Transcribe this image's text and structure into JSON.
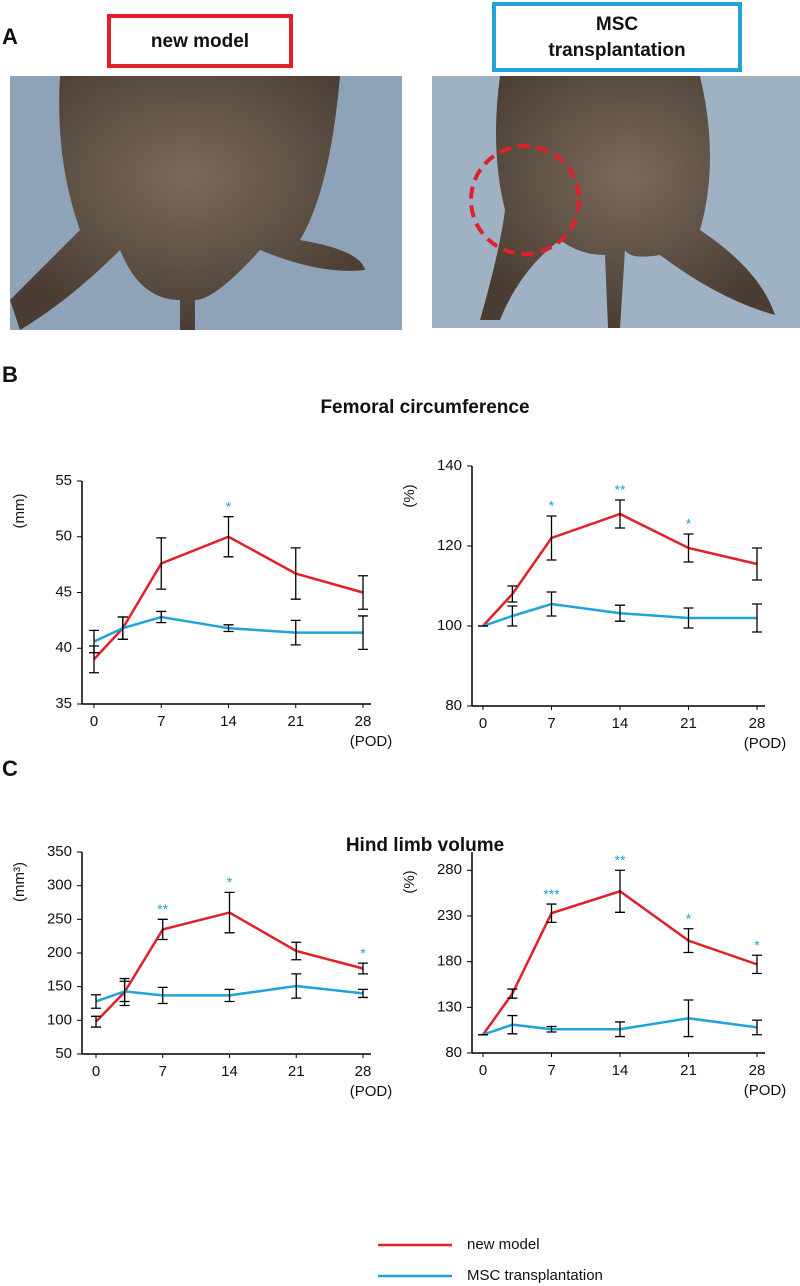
{
  "panel_labels": [
    "A",
    "B",
    "C"
  ],
  "photo_labels": {
    "left": "new model",
    "right": [
      "MSC",
      "transplantation"
    ]
  },
  "chart_data": [
    {
      "type": "line",
      "title": "Femoral circumference",
      "ylabel": "(mm)",
      "xlabel": "(POD)",
      "x": [
        0,
        3,
        7,
        14,
        21,
        28
      ],
      "xlim": [
        0,
        28
      ],
      "xticks": [
        0,
        7,
        14,
        21,
        28
      ],
      "ylim": [
        35,
        55
      ],
      "yticks": [
        35,
        40,
        45,
        50,
        55
      ],
      "series": [
        {
          "name": "new model",
          "color": "#e0202a",
          "values": [
            39.0,
            41.8,
            47.6,
            50.0,
            46.7,
            45.0
          ],
          "errors": [
            1.2,
            1.0,
            2.3,
            1.8,
            2.3,
            1.5
          ]
        },
        {
          "name": "MSC transplantation",
          "color": "#1fa3d8",
          "values": [
            40.6,
            41.8,
            42.8,
            41.8,
            41.4,
            41.4
          ],
          "errors": [
            1.0,
            1.0,
            0.5,
            0.3,
            1.1,
            1.5
          ]
        }
      ],
      "significance": [
        {
          "x": 14,
          "label": "*"
        }
      ]
    },
    {
      "type": "line",
      "ylabel": "(%)",
      "xlabel": "(POD)",
      "x": [
        0,
        3,
        7,
        14,
        21,
        28
      ],
      "xlim": [
        0,
        28
      ],
      "xticks": [
        0,
        7,
        14,
        21,
        28
      ],
      "ylim": [
        80,
        140
      ],
      "yticks": [
        80,
        100,
        120,
        140
      ],
      "series": [
        {
          "name": "new model",
          "color": "#e0202a",
          "values": [
            100,
            108,
            122,
            128,
            119.5,
            115.5
          ],
          "errors": [
            0,
            2,
            5.5,
            3.5,
            3.5,
            4
          ]
        },
        {
          "name": "MSC transplantation",
          "color": "#1fa3d8",
          "values": [
            100,
            102.5,
            105.5,
            103.2,
            102,
            102
          ],
          "errors": [
            0,
            2.5,
            3,
            2,
            2.5,
            3.5
          ]
        }
      ],
      "significance": [
        {
          "x": 7,
          "label": "*"
        },
        {
          "x": 14,
          "label": "**"
        },
        {
          "x": 21,
          "label": "*"
        }
      ]
    },
    {
      "type": "line",
      "title": "Hind limb volume",
      "ylabel": "(mm³)",
      "xlabel": "(POD)",
      "x": [
        0,
        3,
        7,
        14,
        21,
        28
      ],
      "xlim": [
        0,
        28
      ],
      "xticks": [
        0,
        7,
        14,
        21,
        28
      ],
      "ylim": [
        50,
        350
      ],
      "yticks": [
        50,
        100,
        150,
        200,
        250,
        300,
        350
      ],
      "series": [
        {
          "name": "new model",
          "color": "#e0202a",
          "values": [
            98,
            142,
            235,
            260,
            203,
            177
          ],
          "errors": [
            8,
            20,
            15,
            30,
            13,
            8
          ]
        },
        {
          "name": "MSC transplantation",
          "color": "#1fa3d8",
          "values": [
            128,
            143,
            137,
            137,
            151,
            140
          ],
          "errors": [
            10,
            15,
            12,
            9,
            18,
            6
          ]
        }
      ],
      "significance": [
        {
          "x": 7,
          "label": "**"
        },
        {
          "x": 14,
          "label": "*"
        },
        {
          "x": 28,
          "label": "*"
        }
      ]
    },
    {
      "type": "line",
      "ylabel": "(%)",
      "xlabel": "(POD)",
      "x": [
        0,
        3,
        7,
        14,
        21,
        28
      ],
      "xlim": [
        0,
        28
      ],
      "xticks": [
        0,
        7,
        14,
        21,
        28
      ],
      "ylim": [
        80,
        300
      ],
      "yticks": [
        80,
        130,
        180,
        230,
        280
      ],
      "series": [
        {
          "name": "new model",
          "color": "#e0202a",
          "values": [
            100,
            145,
            233,
            257,
            203,
            177
          ],
          "errors": [
            0,
            5,
            10,
            23,
            13,
            10
          ]
        },
        {
          "name": "MSC transplantation",
          "color": "#1fa3d8",
          "values": [
            100,
            111,
            106,
            106,
            118,
            108
          ],
          "errors": [
            0,
            10,
            3,
            8,
            20,
            8
          ]
        }
      ],
      "significance": [
        {
          "x": 7,
          "label": "***"
        },
        {
          "x": 14,
          "label": "**"
        },
        {
          "x": 21,
          "label": "*"
        },
        {
          "x": 28,
          "label": "*"
        }
      ]
    }
  ]
}
